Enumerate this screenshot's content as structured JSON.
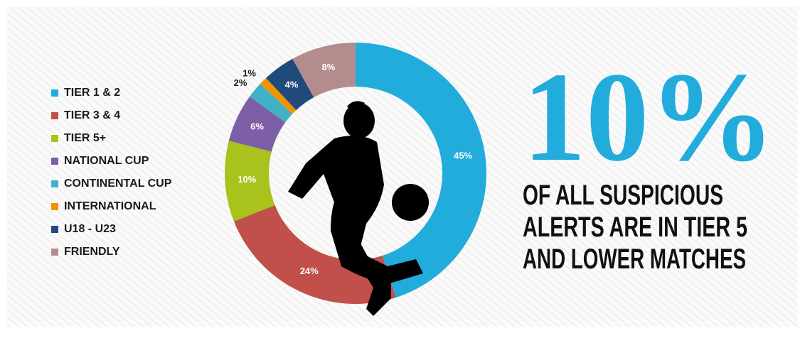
{
  "chart_data": {
    "type": "donut",
    "categories": [
      "TIER 1 & 2",
      "TIER 3 & 4",
      "TIER 5+",
      "NATIONAL CUP",
      "CONTINENTAL CUP",
      "INTERNATIONAL",
      "U18 - U23",
      "FRIENDLY"
    ],
    "values": [
      45,
      24,
      10,
      6,
      2,
      1,
      4,
      8
    ],
    "value_labels": [
      "45%",
      "24%",
      "10%",
      "6%",
      "2%",
      "1%",
      "4%",
      "8%"
    ],
    "colors": [
      "#22acdc",
      "#c1504b",
      "#a9c21c",
      "#7d5fa8",
      "#3fb2c8",
      "#f39200",
      "#1f4a7a",
      "#b38d8d"
    ]
  },
  "headline": {
    "figure": "10%",
    "caption": [
      "OF ALL SUSPICIOUS",
      "ALERTS ARE IN TIER 5",
      "AND LOWER MATCHES"
    ]
  }
}
